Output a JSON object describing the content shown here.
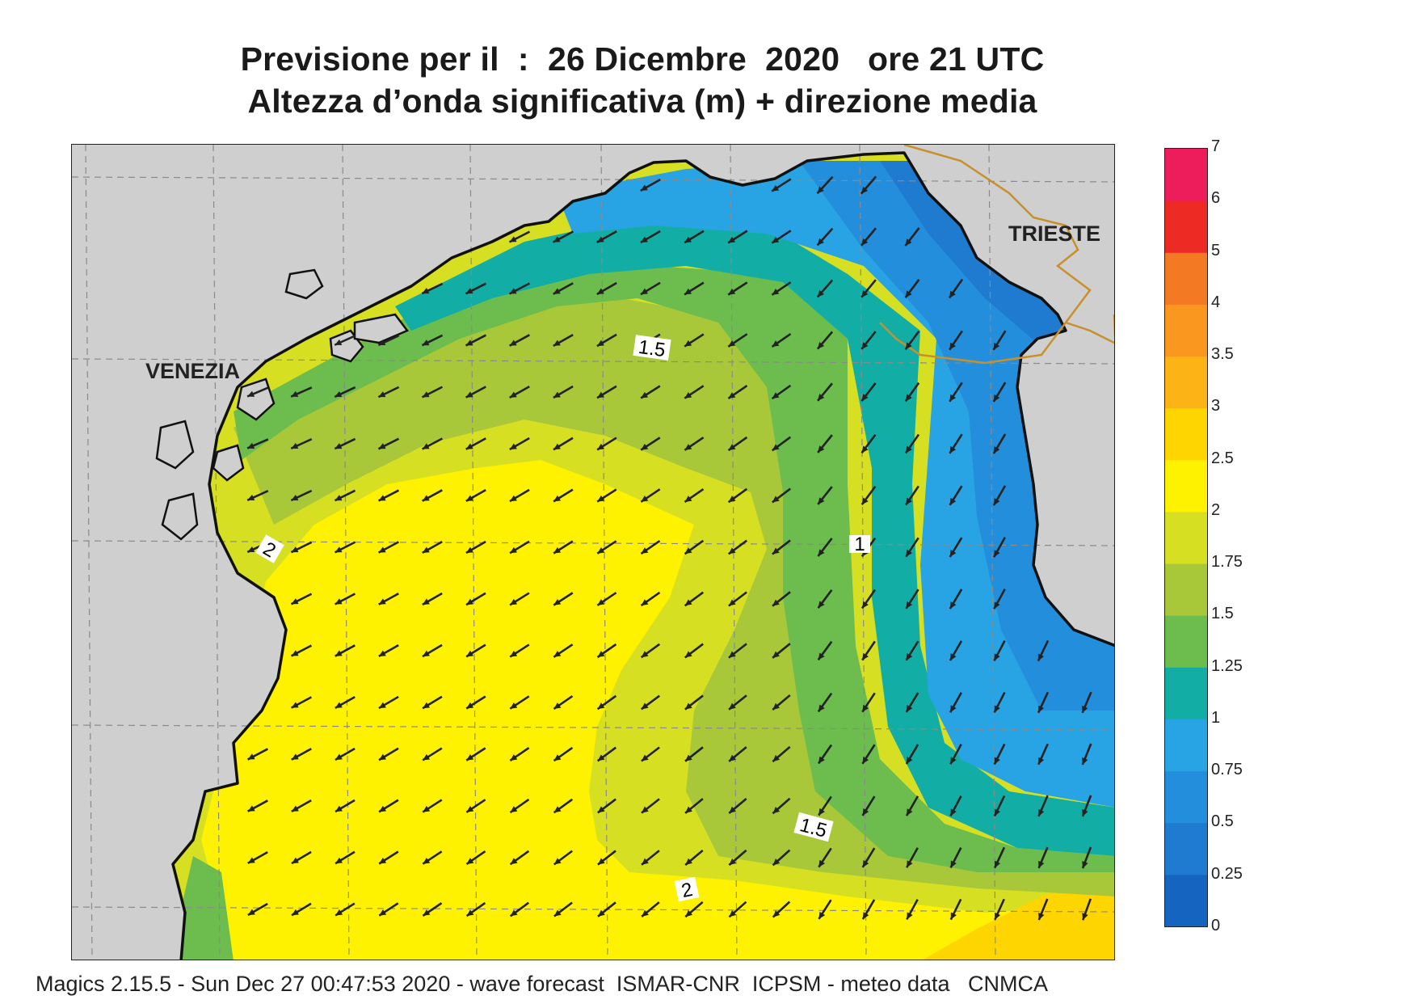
{
  "title": {
    "line1": "Previsione per il  :  26 Dicembre  2020   ore 21 UTC",
    "line2": "Altezza d’onda significativa (m) + direzione media"
  },
  "map": {
    "places": [
      {
        "name": "VENEZIA"
      },
      {
        "name": "TRIESTE"
      }
    ],
    "contour_labels": [
      "1.5",
      "2",
      "1",
      "1.5",
      "2"
    ],
    "arrow_direction": "south-west",
    "colors": {
      "land": "#cfcfcf",
      "coast": "#111111",
      "border": "#c8902a",
      "grid": "#8a8a8a",
      "arrow": "#222222"
    }
  },
  "colorbar": {
    "unit": "m",
    "ticks": [
      "7",
      "6",
      "5",
      "4",
      "3.5",
      "3",
      "2.5",
      "2",
      "1.75",
      "1.5",
      "1.25",
      "1",
      "0.75",
      "0.5",
      "0.25",
      "0"
    ],
    "bands": [
      {
        "from": "0",
        "to": "0.25",
        "color": "#1565c0"
      },
      {
        "from": "0.25",
        "to": "0.5",
        "color": "#1e7bcf"
      },
      {
        "from": "0.5",
        "to": "0.75",
        "color": "#238fdc"
      },
      {
        "from": "0.75",
        "to": "1",
        "color": "#28a3e3"
      },
      {
        "from": "1",
        "to": "1.25",
        "color": "#12aea6"
      },
      {
        "from": "1.25",
        "to": "1.5",
        "color": "#6cbd4e"
      },
      {
        "from": "1.5",
        "to": "1.75",
        "color": "#a8c83a"
      },
      {
        "from": "1.75",
        "to": "2",
        "color": "#d7df23"
      },
      {
        "from": "2",
        "to": "2.5",
        "color": "#fff200"
      },
      {
        "from": "2.5",
        "to": "3",
        "color": "#ffd500"
      },
      {
        "from": "3",
        "to": "3.5",
        "color": "#fbb316"
      },
      {
        "from": "3.5",
        "to": "4",
        "color": "#f9971f"
      },
      {
        "from": "4",
        "to": "5",
        "color": "#f37a22"
      },
      {
        "from": "5",
        "to": "6",
        "color": "#ee2a24"
      },
      {
        "from": "6",
        "to": "7",
        "color": "#ed1c5b"
      }
    ]
  },
  "footer": "Magics 2.15.5 - Sun Dec 27 00:47:53 2020 - wave forecast  ISMAR-CNR  ICPSM - meteo data   CNMCA"
}
